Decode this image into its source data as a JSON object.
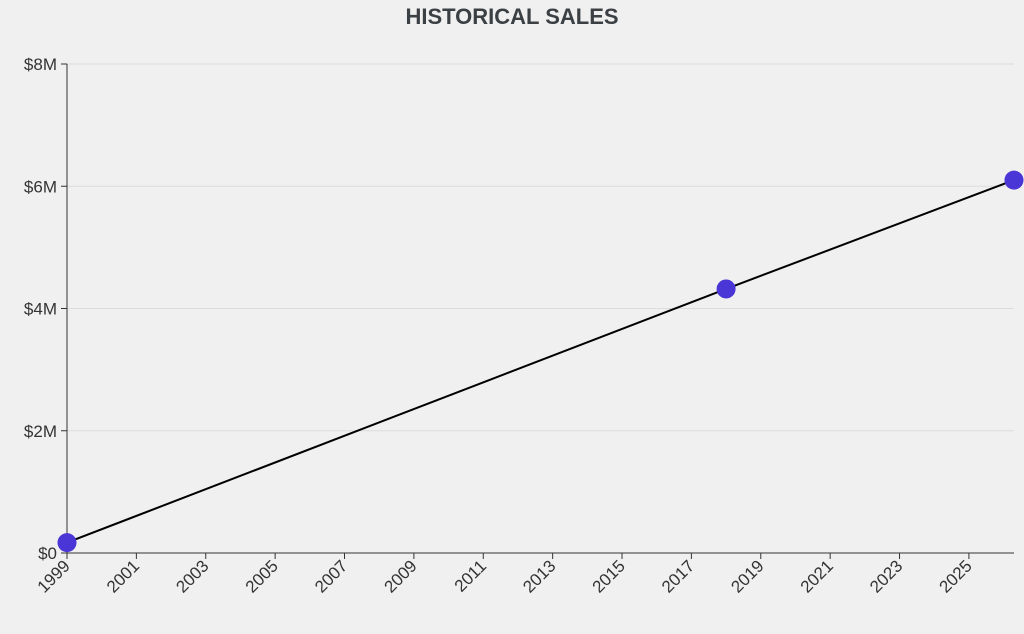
{
  "chart_data": {
    "type": "line",
    "title": "HISTORICAL SALES",
    "xlabel": "",
    "ylabel": "",
    "xlim": [
      1999,
      2026.3
    ],
    "ylim": [
      0,
      8000000
    ],
    "x_ticks": [
      1999,
      2001,
      2003,
      2005,
      2007,
      2009,
      2011,
      2013,
      2015,
      2017,
      2019,
      2021,
      2023,
      2025
    ],
    "y_ticks": [
      {
        "value": 0,
        "label": "$0"
      },
      {
        "value": 2000000,
        "label": "$2M"
      },
      {
        "value": 4000000,
        "label": "$4M"
      },
      {
        "value": 6000000,
        "label": "$6M"
      },
      {
        "value": 8000000,
        "label": "$8M"
      }
    ],
    "grid": true,
    "series": [
      {
        "name": "",
        "line_color": "#000000",
        "point_color": "#4a35d6",
        "points": [
          {
            "x": 1999,
            "y": 170000
          },
          {
            "x": 2018,
            "y": 4320000
          },
          {
            "x": 2026.3,
            "y": 6100000
          }
        ]
      }
    ]
  }
}
